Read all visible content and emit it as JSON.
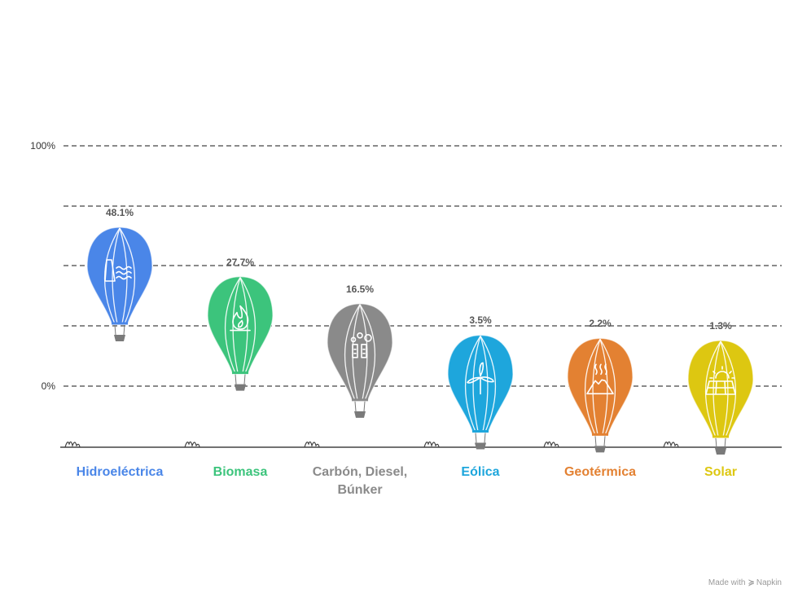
{
  "chart_data": {
    "type": "bar",
    "categories": [
      "Hidroeléctrica",
      "Biomasa",
      "Carbón, Diesel,\nBúnker",
      "Eólica",
      "Geotérmica",
      "Solar"
    ],
    "values": [
      48.1,
      27.7,
      16.5,
      3.5,
      2.2,
      1.3
    ],
    "value_labels": [
      "48.1%",
      "27.7%",
      "16.5%",
      "3.5%",
      "2.2%",
      "1.3%"
    ],
    "colors": [
      "#4a86e8",
      "#3cc47c",
      "#8a8a8a",
      "#1ea6dc",
      "#e38132",
      "#ddc711"
    ],
    "icons": [
      "hydro-dam-icon",
      "flame-icon",
      "factory-smoke-icon",
      "wind-turbine-icon",
      "volcano-icon",
      "solar-panel-icon"
    ],
    "ylim": [
      0,
      100
    ],
    "yticks": [
      "100%",
      "0%"
    ],
    "grid": true,
    "title": "",
    "xlabel": "",
    "ylabel": ""
  },
  "watermark": {
    "prefix": "Made with",
    "brand": "Napkin"
  }
}
